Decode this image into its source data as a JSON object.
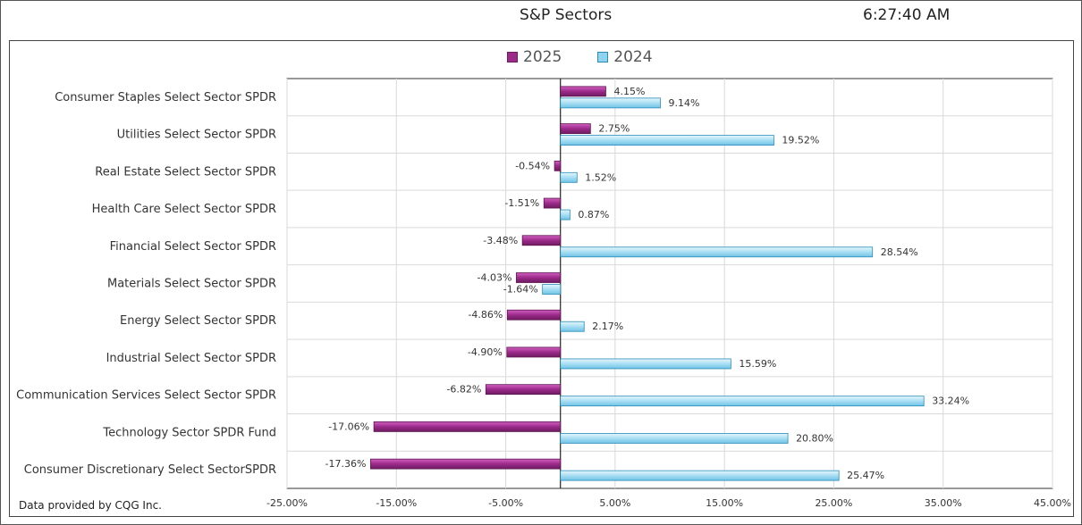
{
  "header": {
    "title": "S&P Sectors",
    "time": "6:27:40 AM"
  },
  "footer": {
    "credit": "Data provided by CQG Inc."
  },
  "colors": {
    "series_2025": "#9c2a8a",
    "series_2024": "#8fd3ef",
    "grid": "#d9d9d9"
  },
  "chart_data": {
    "type": "bar",
    "orientation": "horizontal",
    "categories": [
      "Consumer Staples Select Sector SPDR",
      "Utilities Select Sector SPDR",
      "Real Estate Select Sector SPDR",
      "Health Care Select Sector SPDR",
      "Financial Select Sector SPDR",
      "Materials Select Sector SPDR",
      "Energy Select Sector SPDR",
      "Industrial Select Sector SPDR",
      "Communication Services Select Sector SPDR",
      "Technology Sector SPDR Fund",
      "Consumer Discretionary Select SectorSPDR"
    ],
    "series": [
      {
        "name": "2025",
        "values": [
          4.15,
          2.75,
          -0.54,
          -1.51,
          -3.48,
          -4.03,
          -4.86,
          -4.9,
          -6.82,
          -17.06,
          -17.36
        ],
        "labels": [
          "4.15%",
          "2.75%",
          "-0.54%",
          "-1.51%",
          "-3.48%",
          "-4.03%",
          "-4.86%",
          "-4.90%",
          "-6.82%",
          "-17.06%",
          "-17.36%"
        ]
      },
      {
        "name": "2024",
        "values": [
          9.14,
          19.52,
          1.52,
          0.87,
          28.54,
          -1.64,
          2.17,
          15.59,
          33.24,
          20.8,
          25.47
        ],
        "labels": [
          "9.14%",
          "19.52%",
          "1.52%",
          "0.87%",
          "28.54%",
          "-1.64%",
          "2.17%",
          "15.59%",
          "33.24%",
          "20.80%",
          "25.47%"
        ]
      }
    ],
    "xlim": [
      -25,
      45
    ],
    "xticks": [
      -25,
      -15,
      -5,
      5,
      15,
      25,
      35,
      45
    ],
    "xtick_labels": [
      "-25.00%",
      "-15.00%",
      "-5.00%",
      "5.00%",
      "15.00%",
      "25.00%",
      "35.00%",
      "45.00%"
    ],
    "grid": true,
    "legend_position": "top-center"
  }
}
